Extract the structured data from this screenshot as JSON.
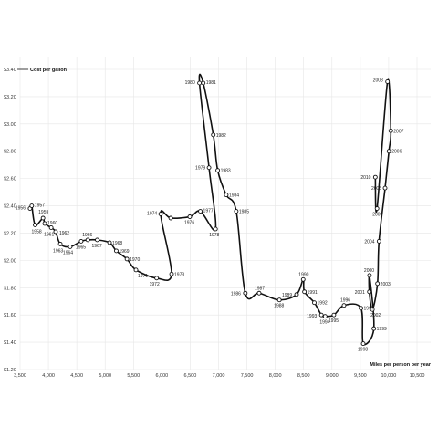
{
  "chart_data": {
    "type": "line",
    "xlabel": "Miles per person per year",
    "ylabel": "Cost per gallon",
    "xlim": [
      3500,
      10500
    ],
    "ylim": [
      1.2,
      3.4
    ],
    "x_ticks": [
      "3,500",
      "4,000",
      "4,500",
      "5,000",
      "5,500",
      "6,000",
      "6,500",
      "7,000",
      "7,500",
      "8,000",
      "8,500",
      "9,000",
      "9,500",
      "10,000",
      "10,500"
    ],
    "y_ticks": [
      "$1.20",
      "$1.40",
      "$1.60",
      "$1.80",
      "$2.00",
      "$2.20",
      "$2.40",
      "$2.60",
      "$2.80",
      "$3.00",
      "$3.20",
      "$3.40"
    ],
    "grid": true,
    "line_color": "#111111",
    "points": [
      {
        "year": "1956",
        "x": 3675,
        "y": 2.38
      },
      {
        "year": "1957",
        "x": 3706,
        "y": 2.4
      },
      {
        "year": "1958",
        "x": 3766,
        "y": 2.26
      },
      {
        "year": "1959",
        "x": 3905,
        "y": 2.31
      },
      {
        "year": "1960",
        "x": 3935,
        "y": 2.27
      },
      {
        "year": "1961",
        "x": 4049,
        "y": 2.24
      },
      {
        "year": "1962",
        "x": 4127,
        "y": 2.21
      },
      {
        "year": "1963",
        "x": 4209,
        "y": 2.12
      },
      {
        "year": "1964",
        "x": 4384,
        "y": 2.1
      },
      {
        "year": "1965",
        "x": 4577,
        "y": 2.14
      },
      {
        "year": "1966",
        "x": 4694,
        "y": 2.15
      },
      {
        "year": "1967",
        "x": 4860,
        "y": 2.15
      },
      {
        "year": "1968",
        "x": 5078,
        "y": 2.13
      },
      {
        "year": "1969",
        "x": 5197,
        "y": 2.07
      },
      {
        "year": "1970",
        "x": 5385,
        "y": 2.01
      },
      {
        "year": "1971",
        "x": 5544,
        "y": 1.93
      },
      {
        "year": "1972",
        "x": 5908,
        "y": 1.87
      },
      {
        "year": "1973",
        "x": 6172,
        "y": 1.9
      },
      {
        "year": "1974",
        "x": 5979,
        "y": 2.34
      },
      {
        "year": "1975",
        "x": 6157,
        "y": 2.31
      },
      {
        "year": "1976",
        "x": 6493,
        "y": 2.32
      },
      {
        "year": "1977",
        "x": 6679,
        "y": 2.36
      },
      {
        "year": "1978",
        "x": 6947,
        "y": 2.23
      },
      {
        "year": "1979",
        "x": 6832,
        "y": 2.68
      },
      {
        "year": "1980",
        "x": 6664,
        "y": 3.3
      },
      {
        "year": "1981",
        "x": 6730,
        "y": 3.3
      },
      {
        "year": "1982",
        "x": 6907,
        "y": 2.92
      },
      {
        "year": "1983",
        "x": 6985,
        "y": 2.66
      },
      {
        "year": "1984",
        "x": 7136,
        "y": 2.48
      },
      {
        "year": "1985",
        "x": 7312,
        "y": 2.36
      },
      {
        "year": "1986",
        "x": 7472,
        "y": 1.76
      },
      {
        "year": "1987",
        "x": 7716,
        "y": 1.76
      },
      {
        "year": "1988",
        "x": 8073,
        "y": 1.71
      },
      {
        "year": "1989",
        "x": 8376,
        "y": 1.75
      },
      {
        "year": "1990",
        "x": 8493,
        "y": 1.86
      },
      {
        "year": "1991",
        "x": 8515,
        "y": 1.77
      },
      {
        "year": "1992",
        "x": 8690,
        "y": 1.69
      },
      {
        "year": "1993",
        "x": 8813,
        "y": 1.6
      },
      {
        "year": "1994",
        "x": 8880,
        "y": 1.59
      },
      {
        "year": "1995",
        "x": 9034,
        "y": 1.6
      },
      {
        "year": "1996",
        "x": 9212,
        "y": 1.67
      },
      {
        "year": "1997",
        "x": 9511,
        "y": 1.65
      },
      {
        "year": "1998",
        "x": 9551,
        "y": 1.39
      },
      {
        "year": "1999",
        "x": 9738,
        "y": 1.5
      },
      {
        "year": "2000",
        "x": 9662,
        "y": 1.89
      },
      {
        "year": "2001",
        "x": 9659,
        "y": 1.77
      },
      {
        "year": "2002",
        "x": 9713,
        "y": 1.64
      },
      {
        "year": "2003",
        "x": 9803,
        "y": 1.83
      },
      {
        "year": "2004",
        "x": 9830,
        "y": 2.14
      },
      {
        "year": "2005",
        "x": 9937,
        "y": 2.53
      },
      {
        "year": "2006",
        "x": 10005,
        "y": 2.8
      },
      {
        "year": "2007",
        "x": 10038,
        "y": 2.95
      },
      {
        "year": "2008",
        "x": 9980,
        "y": 3.31
      },
      {
        "year": "2009",
        "x": 9795,
        "y": 2.38
      },
      {
        "year": "2010",
        "x": 9765,
        "y": 2.61
      }
    ]
  }
}
